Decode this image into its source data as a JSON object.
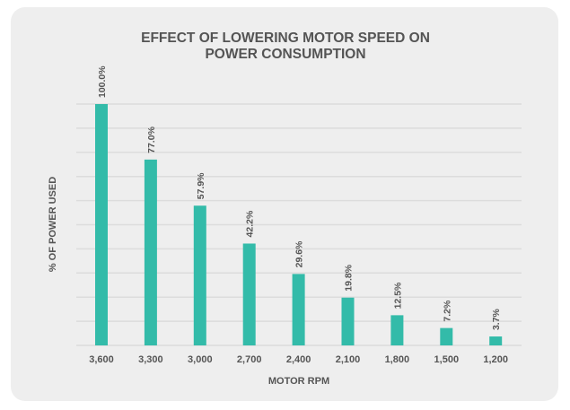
{
  "chart_data": {
    "type": "bar",
    "title_lines": [
      "EFFECT OF LOWERING MOTOR SPEED ON",
      "POWER CONSUMPTION"
    ],
    "xlabel": "MOTOR RPM",
    "ylabel": "% OF POWER USED",
    "categories": [
      "3,600",
      "3,300",
      "3,000",
      "2,700",
      "2,400",
      "2,100",
      "1,800",
      "1,500",
      "1,200"
    ],
    "values": [
      100.0,
      77.0,
      57.9,
      42.2,
      29.6,
      19.8,
      12.5,
      7.2,
      3.7
    ],
    "data_labels": [
      "100.0%",
      "77.0%",
      "57.9%",
      "42.2%",
      "29.6%",
      "19.8%",
      "12.5%",
      "7.2%",
      "3.7%"
    ],
    "ylim": [
      0,
      100
    ],
    "grid": true,
    "grid_step": 10,
    "bar_color": "#33bba9",
    "text_color": "#555555",
    "background": "#eeeeee"
  }
}
